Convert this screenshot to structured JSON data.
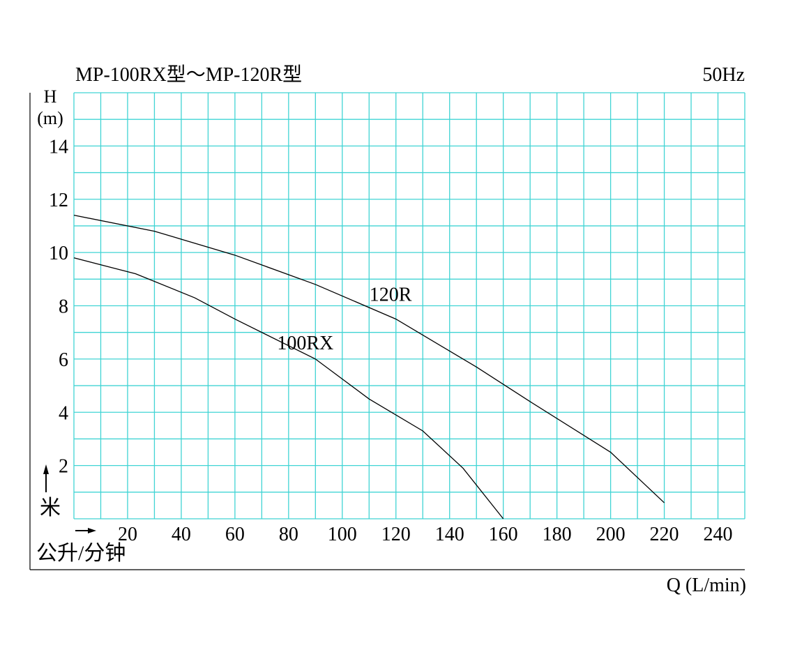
{
  "chart_data": {
    "type": "line",
    "title": "MP-100RX型～MP-120R型",
    "frequency": "50Hz",
    "ylabel": "H",
    "yunit": "(m)",
    "ylabel_cn": "米",
    "xlabel": "Q (L/min)",
    "xlabel_cn": "公升/分钟",
    "xlim": [
      0,
      250
    ],
    "ylim": [
      0,
      16
    ],
    "x_ticks": [
      "20",
      "40",
      "60",
      "80",
      "100",
      "120",
      "140",
      "160",
      "180",
      "200",
      "220",
      "240"
    ],
    "y_ticks": [
      "2",
      "4",
      "6",
      "8",
      "10",
      "12",
      "14"
    ],
    "grid": true,
    "colors": {
      "grid": "#40d4d4",
      "curve": "#000000",
      "text": "#000000"
    },
    "series": [
      {
        "name": "120R",
        "x": [
          0,
          30,
          60,
          90,
          120,
          150,
          170,
          200,
          220
        ],
        "y": [
          11.4,
          10.8,
          9.9,
          8.8,
          7.5,
          5.7,
          4.4,
          2.5,
          0.6
        ]
      },
      {
        "name": "100RX",
        "x": [
          0,
          23,
          45,
          60,
          90,
          110,
          130,
          145,
          160
        ],
        "y": [
          9.8,
          9.2,
          8.3,
          7.5,
          6.0,
          4.5,
          3.3,
          1.9,
          0.0
        ]
      }
    ]
  }
}
